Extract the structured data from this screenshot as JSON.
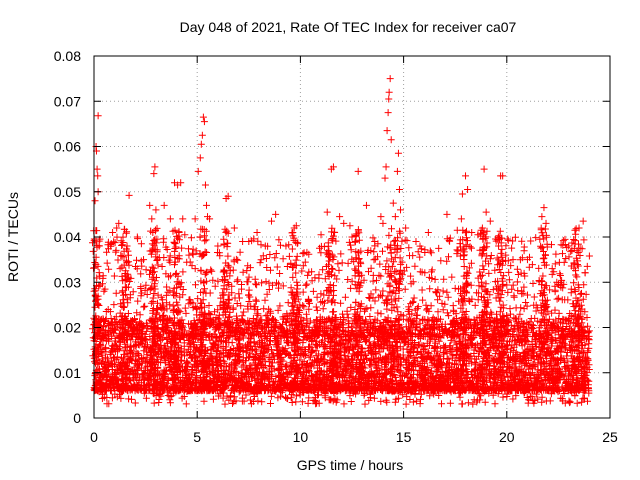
{
  "chart_data": {
    "type": "scatter",
    "title": "Day 048 of 2021, Rate Of TEC Index for receiver ca07",
    "xlabel": "GPS time / hours",
    "ylabel": "ROTI / TECUs",
    "xlim": [
      0,
      25
    ],
    "ylim": [
      0,
      0.08
    ],
    "xticks": [
      0,
      5,
      10,
      15,
      20,
      25
    ],
    "yticks": [
      0,
      0.01,
      0.02,
      0.03,
      0.04,
      0.05,
      0.06,
      0.07,
      0.08
    ],
    "xtick_labels": [
      "0",
      "5",
      "10",
      "15",
      "20",
      "25"
    ],
    "ytick_labels": [
      "0",
      "0.01",
      "0.02",
      "0.03",
      "0.04",
      "0.05",
      "0.06",
      "0.07",
      "0.08"
    ],
    "grid": true,
    "marker": "+",
    "color": "#ff0000",
    "series": [
      {
        "name": "ROTI",
        "description_values": "dense band 0.004-0.02 across 0-24 h, frequent excursions to 0.03-0.045",
        "points": [
          [
            0.05,
            0.048
          ],
          [
            0.1,
            0.06
          ],
          [
            0.12,
            0.059
          ],
          [
            0.15,
            0.055
          ],
          [
            0.18,
            0.0535
          ],
          [
            0.2,
            0.05
          ],
          [
            0.2,
            0.0668
          ],
          [
            0.25,
            0.038
          ],
          [
            0.9,
            0.041
          ],
          [
            1.1,
            0.042
          ],
          [
            1.2,
            0.043
          ],
          [
            1.6,
            0.038
          ],
          [
            1.7,
            0.0492
          ],
          [
            2.1,
            0.04
          ],
          [
            2.4,
            0.035
          ],
          [
            2.7,
            0.047
          ],
          [
            2.8,
            0.044
          ],
          [
            2.85,
            0.041
          ],
          [
            2.9,
            0.054
          ],
          [
            2.95,
            0.0555
          ],
          [
            3.0,
            0.046
          ],
          [
            3.4,
            0.047
          ],
          [
            3.7,
            0.044
          ],
          [
            3.9,
            0.052
          ],
          [
            4.05,
            0.0515
          ],
          [
            4.2,
            0.052
          ],
          [
            4.3,
            0.044
          ],
          [
            4.4,
            0.0405
          ],
          [
            4.6,
            0.036
          ],
          [
            4.9,
            0.044
          ],
          [
            5.05,
            0.0545
          ],
          [
            5.15,
            0.0575
          ],
          [
            5.2,
            0.0605
          ],
          [
            5.25,
            0.0625
          ],
          [
            5.3,
            0.0665
          ],
          [
            5.35,
            0.0655
          ],
          [
            5.4,
            0.0515
          ],
          [
            5.45,
            0.047
          ],
          [
            5.5,
            0.0445
          ],
          [
            5.6,
            0.044
          ],
          [
            6.0,
            0.038
          ],
          [
            6.4,
            0.0485
          ],
          [
            6.5,
            0.049
          ],
          [
            6.8,
            0.042
          ],
          [
            7.2,
            0.039
          ],
          [
            7.5,
            0.039
          ],
          [
            7.9,
            0.041
          ],
          [
            8.3,
            0.038
          ],
          [
            8.6,
            0.0435
          ],
          [
            8.8,
            0.045
          ],
          [
            9.3,
            0.038
          ],
          [
            9.7,
            0.042
          ],
          [
            9.8,
            0.0425
          ],
          [
            11.0,
            0.0405
          ],
          [
            11.3,
            0.0455
          ],
          [
            11.5,
            0.055
          ],
          [
            11.6,
            0.0555
          ],
          [
            11.9,
            0.0445
          ],
          [
            12.1,
            0.043
          ],
          [
            12.4,
            0.0425
          ],
          [
            12.5,
            0.04
          ],
          [
            12.8,
            0.0545
          ],
          [
            13.2,
            0.047
          ],
          [
            13.6,
            0.039
          ],
          [
            13.9,
            0.0445
          ],
          [
            14.0,
            0.043
          ],
          [
            14.1,
            0.053
          ],
          [
            14.15,
            0.0555
          ],
          [
            14.2,
            0.0635
          ],
          [
            14.25,
            0.0675
          ],
          [
            14.28,
            0.0705
          ],
          [
            14.3,
            0.072
          ],
          [
            14.35,
            0.075
          ],
          [
            14.4,
            0.0615
          ],
          [
            14.5,
            0.0475
          ],
          [
            14.6,
            0.0445
          ],
          [
            14.7,
            0.0545
          ],
          [
            14.75,
            0.0585
          ],
          [
            14.8,
            0.0505
          ],
          [
            14.85,
            0.046
          ],
          [
            15.1,
            0.042
          ],
          [
            15.6,
            0.039
          ],
          [
            16.2,
            0.041
          ],
          [
            16.7,
            0.0375
          ],
          [
            17.1,
            0.045
          ],
          [
            17.6,
            0.0415
          ],
          [
            17.8,
            0.044
          ],
          [
            17.85,
            0.0495
          ],
          [
            18.0,
            0.0535
          ],
          [
            18.1,
            0.0505
          ],
          [
            18.3,
            0.041
          ],
          [
            18.6,
            0.0405
          ],
          [
            18.9,
            0.055
          ],
          [
            19.0,
            0.0455
          ],
          [
            19.2,
            0.0435
          ],
          [
            19.6,
            0.038
          ],
          [
            19.7,
            0.0535
          ],
          [
            19.8,
            0.0535
          ],
          [
            20.3,
            0.035
          ],
          [
            21.0,
            0.035
          ],
          [
            21.6,
            0.0395
          ],
          [
            21.7,
            0.0445
          ],
          [
            21.8,
            0.0465
          ],
          [
            21.9,
            0.043
          ],
          [
            22.2,
            0.033
          ],
          [
            22.6,
            0.0315
          ],
          [
            23.0,
            0.038
          ],
          [
            23.3,
            0.0415
          ],
          [
            23.5,
            0.042
          ],
          [
            23.7,
            0.0435
          ],
          [
            23.9,
            0.0335
          ]
        ]
      }
    ]
  }
}
